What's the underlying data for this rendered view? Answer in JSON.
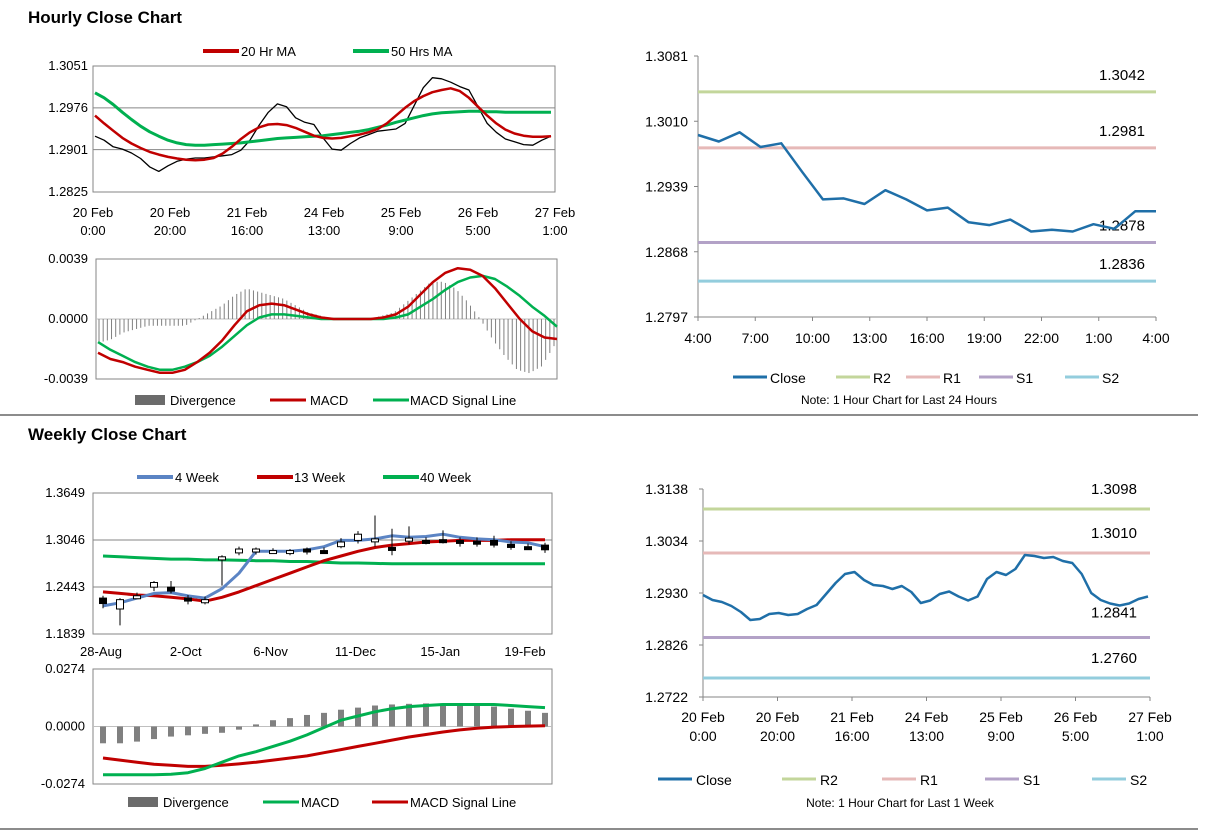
{
  "sections": {
    "hourly_title": "Hourly Close Chart",
    "weekly_title": "Weekly Close Chart"
  },
  "colors": {
    "ma20": "#c00000",
    "ma50": "#00b050",
    "close": "#1f6fa8",
    "r2": "#c3d69b",
    "r1": "#e6b9b8",
    "s1": "#b3a2c7",
    "s2": "#93cddd",
    "week4": "#5b84c4",
    "divergence": "#808080"
  },
  "chart_data": [
    {
      "id": "hourly_price",
      "type": "line",
      "title": "",
      "ylim": [
        1.2825,
        1.3051
      ],
      "y_ticks": [
        "1.3051",
        "1.2976",
        "1.2901",
        "1.2825"
      ],
      "x_ticks": [
        {
          "line1": "20 Feb",
          "line2": "0:00"
        },
        {
          "line1": "20 Feb",
          "line2": "20:00"
        },
        {
          "line1": "21 Feb",
          "line2": "16:00"
        },
        {
          "line1": "24 Feb",
          "line2": "13:00"
        },
        {
          "line1": "25 Feb",
          "line2": "9:00"
        },
        {
          "line1": "26 Feb",
          "line2": "5:00"
        },
        {
          "line1": "27 Feb",
          "line2": "1:00"
        }
      ],
      "legend": [
        "20 Hr MA",
        "50 Hrs MA"
      ],
      "price": [
        1.2925,
        1.2918,
        1.2906,
        1.2902,
        1.2895,
        1.2885,
        1.287,
        1.2862,
        1.2872,
        1.288,
        1.2884,
        1.2886,
        1.2886,
        1.2888,
        1.289,
        1.2892,
        1.29,
        1.2918,
        1.2945,
        1.2968,
        1.2983,
        1.2978,
        1.2958,
        1.295,
        1.2946,
        1.2922,
        1.2902,
        1.29,
        1.2912,
        1.2922,
        1.2928,
        1.2934,
        1.2936,
        1.2938,
        1.2948,
        1.298,
        1.3012,
        1.303,
        1.3028,
        1.3022,
        1.3014,
        1.3008,
        1.2978,
        1.2948,
        1.2932,
        1.292,
        1.2915,
        1.291,
        1.2909,
        1.2918,
        1.2925
      ],
      "ma20": [
        1.2962,
        1.2948,
        1.2935,
        1.2922,
        1.2912,
        1.2904,
        1.2897,
        1.2892,
        1.2888,
        1.2885,
        1.2883,
        1.2882,
        1.2883,
        1.2886,
        1.2894,
        1.2906,
        1.292,
        1.2932,
        1.2941,
        1.2946,
        1.2947,
        1.2945,
        1.294,
        1.2933,
        1.2926,
        1.2922,
        1.2921,
        1.2922,
        1.2925,
        1.2928,
        1.2932,
        1.2938,
        1.2948,
        1.2962,
        1.2976,
        1.2988,
        1.2997,
        1.3004,
        1.3008,
        1.3011,
        1.3006,
        1.2994,
        1.2978,
        1.2962,
        1.2948,
        1.2937,
        1.293,
        1.2926,
        1.2924,
        1.2924,
        1.2925
      ],
      "ma50": [
        1.3003,
        1.2994,
        1.2982,
        1.2968,
        1.2955,
        1.2943,
        1.2933,
        1.2925,
        1.2918,
        1.2913,
        1.291,
        1.2909,
        1.2909,
        1.291,
        1.2911,
        1.2912,
        1.2913,
        1.2915,
        1.2917,
        1.2919,
        1.2921,
        1.2922,
        1.2923,
        1.2924,
        1.2925,
        1.2926,
        1.2928,
        1.293,
        1.2932,
        1.2934,
        1.2937,
        1.2941,
        1.2945,
        1.295,
        1.2954,
        1.2958,
        1.2962,
        1.2965,
        1.2967,
        1.2968,
        1.2969,
        1.297,
        1.297,
        1.2969,
        1.2969,
        1.2968,
        1.2968,
        1.2968,
        1.2968,
        1.2968,
        1.2968
      ]
    },
    {
      "id": "hourly_macd",
      "type": "line",
      "ylim": [
        -0.0039,
        0.0039
      ],
      "y_ticks": [
        "0.0039",
        "0.0000",
        "-0.0039"
      ],
      "legend": [
        "Divergence",
        "MACD",
        "MACD Signal Line"
      ],
      "macd": [
        -0.0022,
        -0.0026,
        -0.0028,
        -0.0031,
        -0.0033,
        -0.0035,
        -0.0035,
        -0.0033,
        -0.0028,
        -0.0022,
        -0.0014,
        -0.0004,
        0.0005,
        0.0009,
        0.001,
        0.0009,
        0.0006,
        0.0003,
        0.0001,
        0.0,
        0.0,
        0.0,
        0.0,
        0.0001,
        0.0003,
        0.0008,
        0.0016,
        0.0024,
        0.003,
        0.0033,
        0.0032,
        0.0028,
        0.002,
        0.001,
        0.0,
        -0.0008,
        -0.0012,
        -0.0013
      ],
      "signal": [
        -0.0015,
        -0.002,
        -0.0024,
        -0.0028,
        -0.0031,
        -0.0033,
        -0.0033,
        -0.0031,
        -0.0028,
        -0.0024,
        -0.0018,
        -0.0011,
        -0.0004,
        0.0001,
        0.0003,
        0.0003,
        0.0002,
        0.0001,
        0.0,
        0.0,
        0.0,
        0.0,
        0.0,
        0.0,
        0.0001,
        0.0003,
        0.0008,
        0.0013,
        0.0019,
        0.0024,
        0.0027,
        0.0028,
        0.0026,
        0.0021,
        0.0015,
        0.0008,
        0.0002,
        -0.0005
      ]
    },
    {
      "id": "hourly_levels",
      "type": "line",
      "ylim": [
        1.2797,
        1.3081
      ],
      "y_ticks": [
        "1.3081",
        "1.3010",
        "1.2939",
        "1.2868",
        "1.2797"
      ],
      "x_ticks": [
        "4:00",
        "7:00",
        "10:00",
        "13:00",
        "16:00",
        "19:00",
        "22:00",
        "1:00",
        "4:00"
      ],
      "close": [
        1.2995,
        1.2988,
        1.2998,
        1.2982,
        1.2986,
        1.2955,
        1.2925,
        1.2926,
        1.292,
        1.2935,
        1.2925,
        1.2913,
        1.2916,
        1.29,
        1.2897,
        1.2903,
        1.289,
        1.2892,
        1.289,
        1.2898,
        1.2893,
        1.2912,
        1.2912
      ],
      "levels": [
        {
          "name": "R2",
          "value": 1.3042,
          "label": "1.3042"
        },
        {
          "name": "R1",
          "value": 1.2981,
          "label": "1.2981"
        },
        {
          "name": "S1",
          "value": 1.2878,
          "label": "1.2878"
        },
        {
          "name": "S2",
          "value": 1.2836,
          "label": "1.2836"
        }
      ],
      "legend": [
        "Close",
        "R2",
        "R1",
        "S1",
        "S2"
      ],
      "note": "Note: 1 Hour Chart for Last 24 Hours"
    },
    {
      "id": "weekly_price",
      "type": "line",
      "ylim": [
        1.1839,
        1.3649
      ],
      "y_ticks": [
        "1.3649",
        "1.3046",
        "1.2443",
        "1.1839"
      ],
      "x_ticks": [
        "28-Aug",
        "2-Oct",
        "6-Nov",
        "11-Dec",
        "15-Jan",
        "19-Feb"
      ],
      "legend": [
        "4 Week",
        "13 Week",
        "40 Week"
      ],
      "candles": [
        {
          "o": 1.23,
          "c": 1.223,
          "h": 1.233,
          "l": 1.217
        },
        {
          "o": 1.216,
          "c": 1.228,
          "h": 1.23,
          "l": 1.195
        },
        {
          "o": 1.232,
          "c": 1.233,
          "h": 1.237,
          "l": 1.229
        },
        {
          "o": 1.244,
          "c": 1.25,
          "h": 1.252,
          "l": 1.239
        },
        {
          "o": 1.244,
          "c": 1.239,
          "h": 1.252,
          "l": 1.236
        },
        {
          "o": 1.23,
          "c": 1.227,
          "h": 1.234,
          "l": 1.222
        },
        {
          "o": 1.224,
          "c": 1.228,
          "h": 1.232,
          "l": 1.222
        },
        {
          "o": 1.279,
          "c": 1.283,
          "h": 1.285,
          "l": 1.246
        },
        {
          "o": 1.288,
          "c": 1.293,
          "h": 1.296,
          "l": 1.285
        },
        {
          "o": 1.29,
          "c": 1.293,
          "h": 1.295,
          "l": 1.286
        },
        {
          "o": 1.29,
          "c": 1.291,
          "h": 1.294,
          "l": 1.287
        },
        {
          "o": 1.289,
          "c": 1.291,
          "h": 1.293,
          "l": 1.285
        },
        {
          "o": 1.293,
          "c": 1.29,
          "h": 1.295,
          "l": 1.286
        },
        {
          "o": 1.291,
          "c": 1.29,
          "h": 1.295,
          "l": 1.288
        },
        {
          "o": 1.296,
          "c": 1.302,
          "h": 1.307,
          "l": 1.294
        },
        {
          "o": 1.304,
          "c": 1.312,
          "h": 1.316,
          "l": 1.3
        },
        {
          "o": 1.303,
          "c": 1.306,
          "h": 1.336,
          "l": 1.296
        },
        {
          "o": 1.295,
          "c": 1.292,
          "h": 1.319,
          "l": 1.285
        },
        {
          "o": 1.303,
          "c": 1.307,
          "h": 1.322,
          "l": 1.299
        },
        {
          "o": 1.304,
          "c": 1.302,
          "h": 1.308,
          "l": 1.299
        },
        {
          "o": 1.305,
          "c": 1.303,
          "h": 1.317,
          "l": 1.3
        },
        {
          "o": 1.304,
          "c": 1.301,
          "h": 1.308,
          "l": 1.296
        },
        {
          "o": 1.303,
          "c": 1.3,
          "h": 1.308,
          "l": 1.296
        },
        {
          "o": 1.304,
          "c": 1.298,
          "h": 1.31,
          "l": 1.295
        },
        {
          "o": 1.299,
          "c": 1.295,
          "h": 1.303,
          "l": 1.292
        },
        {
          "o": 1.296,
          "c": 1.294,
          "h": 1.3,
          "l": 1.292
        },
        {
          "o": 1.298,
          "c": 1.292,
          "h": 1.301,
          "l": 1.288
        }
      ],
      "ma4": [
        1.22,
        1.224,
        1.23,
        1.236,
        1.237,
        1.233,
        1.23,
        1.242,
        1.262,
        1.29,
        1.29,
        1.29,
        1.292,
        1.296,
        1.304,
        1.304,
        1.306,
        1.31,
        1.308,
        1.309,
        1.312,
        1.308,
        1.306,
        1.305,
        1.302,
        1.301,
        1.296
      ],
      "ma13": [
        1.238,
        1.236,
        1.234,
        1.233,
        1.231,
        1.229,
        1.226,
        1.231,
        1.238,
        1.246,
        1.254,
        1.262,
        1.27,
        1.278,
        1.284,
        1.29,
        1.295,
        1.298,
        1.3,
        1.302,
        1.303,
        1.304,
        1.304,
        1.304,
        1.305,
        1.305,
        1.305
      ],
      "ma40": [
        1.284,
        1.283,
        1.282,
        1.281,
        1.28,
        1.28,
        1.279,
        1.279,
        1.2785,
        1.278,
        1.278,
        1.277,
        1.277,
        1.276,
        1.275,
        1.275,
        1.2745,
        1.274,
        1.274,
        1.274,
        1.274,
        1.274,
        1.274,
        1.274,
        1.274,
        1.274,
        1.274
      ]
    },
    {
      "id": "weekly_macd",
      "type": "line",
      "ylim": [
        -0.0274,
        0.0274
      ],
      "y_ticks": [
        "0.0274",
        "0.0000",
        "-0.0274"
      ],
      "legend": [
        "Divergence",
        "MACD",
        "MACD Signal Line"
      ],
      "divergence": [
        -0.008,
        -0.008,
        -0.0072,
        -0.006,
        -0.0048,
        -0.0042,
        -0.0035,
        -0.003,
        -0.0015,
        0.001,
        0.003,
        0.004,
        0.0055,
        0.0065,
        0.008,
        0.009,
        0.01,
        0.0105,
        0.0108,
        0.011,
        0.011,
        0.0108,
        0.0105,
        0.0095,
        0.0085,
        0.0075,
        0.0065
      ],
      "macd": [
        -0.023,
        -0.023,
        -0.023,
        -0.023,
        -0.0228,
        -0.022,
        -0.02,
        -0.017,
        -0.014,
        -0.012,
        -0.0095,
        -0.007,
        -0.004,
        -0.0005,
        0.003,
        0.005,
        0.007,
        0.0085,
        0.0095,
        0.01,
        0.0105,
        0.0105,
        0.0105,
        0.0105,
        0.01,
        0.0095,
        0.009
      ],
      "signal": [
        -0.015,
        -0.016,
        -0.017,
        -0.018,
        -0.0185,
        -0.019,
        -0.019,
        -0.0185,
        -0.0178,
        -0.017,
        -0.016,
        -0.015,
        -0.014,
        -0.0125,
        -0.011,
        -0.0095,
        -0.008,
        -0.0065,
        -0.005,
        -0.0038,
        -0.0026,
        -0.0016,
        -0.0008,
        -0.0003,
        0.0,
        0.0002,
        0.0004
      ]
    },
    {
      "id": "weekly_levels",
      "type": "line",
      "ylim": [
        1.2722,
        1.3138
      ],
      "y_ticks": [
        "1.3138",
        "1.3034",
        "1.2930",
        "1.2826",
        "1.2722"
      ],
      "x_ticks": [
        {
          "line1": "20 Feb",
          "line2": "0:00"
        },
        {
          "line1": "20 Feb",
          "line2": "20:00"
        },
        {
          "line1": "21 Feb",
          "line2": "16:00"
        },
        {
          "line1": "24 Feb",
          "line2": "13:00"
        },
        {
          "line1": "25 Feb",
          "line2": "9:00"
        },
        {
          "line1": "26 Feb",
          "line2": "5:00"
        },
        {
          "line1": "27 Feb",
          "line2": "1:00"
        }
      ],
      "close": [
        1.2926,
        1.2916,
        1.2912,
        1.2904,
        1.2892,
        1.2876,
        1.2878,
        1.2888,
        1.289,
        1.2886,
        1.2888,
        1.2898,
        1.2906,
        1.2928,
        1.295,
        1.2968,
        1.2972,
        1.2956,
        1.2946,
        1.2944,
        1.2938,
        1.2944,
        1.2932,
        1.291,
        1.2915,
        1.2928,
        1.2933,
        1.2923,
        1.2915,
        1.2923,
        1.2958,
        1.2972,
        1.2966,
        1.2978,
        1.3006,
        1.3004,
        1.3,
        1.3002,
        1.2994,
        1.299,
        1.2968,
        1.293,
        1.2916,
        1.2909,
        1.2905,
        1.2909,
        1.2918,
        1.2923
      ],
      "levels": [
        {
          "name": "R2",
          "value": 1.3098,
          "label": "1.3098"
        },
        {
          "name": "R1",
          "value": 1.301,
          "label": "1.3010"
        },
        {
          "name": "S1",
          "value": 1.2841,
          "label": "1.2841"
        },
        {
          "name": "S2",
          "value": 1.276,
          "label": "1.2760"
        }
      ],
      "legend": [
        "Close",
        "R2",
        "R1",
        "S1",
        "S2"
      ],
      "note": "Note: 1 Hour Chart for Last 1 Week"
    }
  ]
}
